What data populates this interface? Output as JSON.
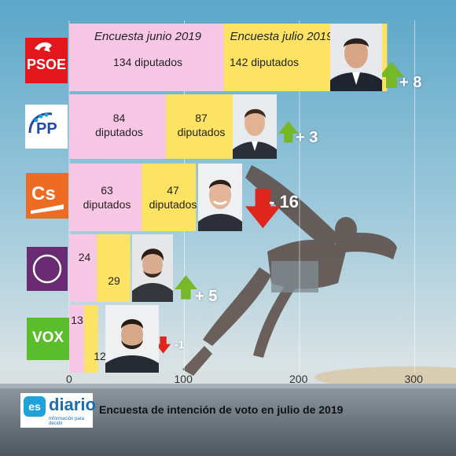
{
  "chart_data": {
    "type": "bar",
    "orientation": "horizontal",
    "headers": {
      "june": "Encuesta junio 2019",
      "july": "Encuesta julio 2019"
    },
    "categories": [
      "PSOE",
      "PP",
      "Cs",
      "Podemos",
      "VOX"
    ],
    "series": [
      {
        "name": "Encuesta junio 2019",
        "values": [
          134,
          84,
          63,
          24,
          13
        ],
        "color": "#f9c7e6"
      },
      {
        "name": "Encuesta julio 2019",
        "values": [
          142,
          87,
          47,
          29,
          12
        ],
        "color": "#fde364"
      }
    ],
    "value_labels": {
      "june": [
        "134 diputados",
        "84\ndiputados",
        "63\ndiputados",
        "24",
        "13"
      ],
      "july": [
        "142 diputados",
        "87\ndiputados",
        "47\ndiputados",
        "29",
        "12"
      ]
    },
    "changes": [
      {
        "text": "+ 8",
        "direction": "up",
        "color": "#77b82a"
      },
      {
        "text": "+ 3",
        "direction": "up",
        "color": "#77b82a"
      },
      {
        "text": "- 16",
        "direction": "down",
        "color": "#e0261c"
      },
      {
        "text": "+ 5",
        "direction": "up",
        "color": "#77b82a"
      },
      {
        "text": "-1",
        "direction": "down",
        "color": "#e0261c"
      }
    ],
    "x_ticks": [
      0,
      100,
      200,
      300
    ],
    "xlim": [
      0,
      335
    ],
    "grid": true
  },
  "logos": {
    "psoe": "PSOE",
    "pp": "PP",
    "cs": "Cs",
    "vox": "VOX"
  },
  "footer": {
    "brand": "diario",
    "brand_badge": "es",
    "brand_sub": "Información para decidir",
    "caption": "Encuesta de intención de voto en julio de 2019"
  }
}
